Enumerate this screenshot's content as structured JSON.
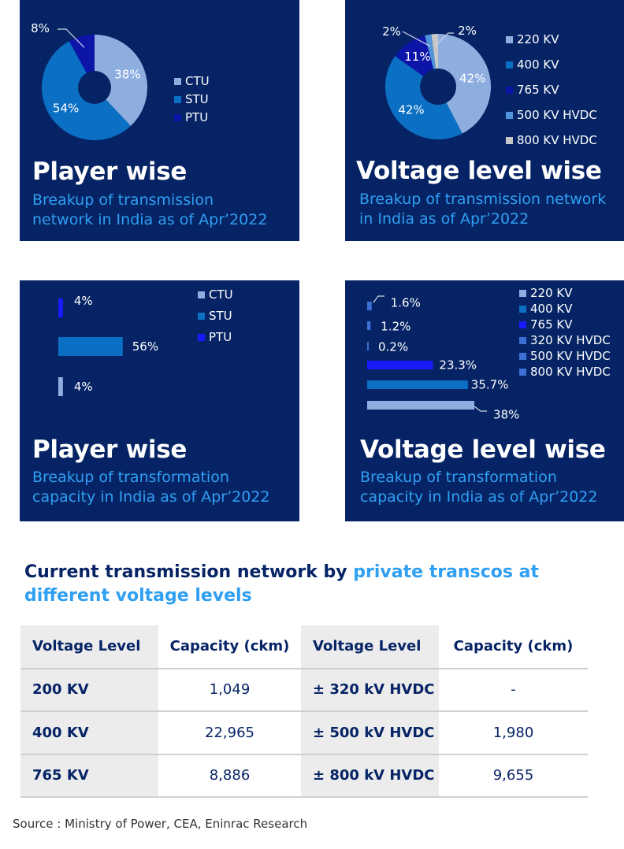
{
  "panels": [
    {
      "id": "p1",
      "title": "Player wise",
      "subtitle_lines": [
        "Breakup of transmission",
        "network in India as of Apr’2022"
      ],
      "legend": [
        {
          "label": "CTU",
          "color": "#8faee0"
        },
        {
          "label": "STU",
          "color": "#0b6fc4"
        },
        {
          "label": "PTU",
          "color": "#0d14a8"
        }
      ]
    },
    {
      "id": "p2",
      "title": "Voltage level wise",
      "subtitle_lines": [
        "Breakup of transmission network",
        "in India as of Apr’2022"
      ],
      "legend": [
        {
          "label": "220 KV",
          "color": "#8faee0"
        },
        {
          "label": "400 KV",
          "color": "#0b6fc4"
        },
        {
          "label": "765 KV",
          "color": "#0d14a8"
        },
        {
          "label": "500 KV HVDC",
          "color": "#4f93db"
        },
        {
          "label": "800 KV HVDC",
          "color": "#c8c8c8"
        }
      ]
    },
    {
      "id": "p3",
      "title": "Player wise",
      "subtitle_lines": [
        "Breakup of transformation",
        "capacity in India as of Apr’2022"
      ],
      "legend": [
        {
          "label": "CTU",
          "color": "#8faee0"
        },
        {
          "label": "STU",
          "color": "#0b6fc4"
        },
        {
          "label": "PTU",
          "color": "#1a1aff"
        }
      ]
    },
    {
      "id": "p4",
      "title": "Voltage level wise",
      "subtitle_lines": [
        "Breakup of transformation",
        "capacity in India as of Apr’2022"
      ],
      "legend": [
        {
          "label": "220 KV",
          "color": "#8faee0"
        },
        {
          "label": "400 KV",
          "color": "#0b6fc4"
        },
        {
          "label": "765 KV",
          "color": "#1a1aff"
        },
        {
          "label": "320 KV HVDC",
          "color": "#3d6fd6"
        },
        {
          "label": "500 KV HVDC",
          "color": "#3d6fd6"
        },
        {
          "label": "800 KV HVDC",
          "color": "#3d6fd6"
        }
      ]
    }
  ],
  "chart_data": [
    {
      "type": "pie",
      "donut": true,
      "title": "Player wise",
      "subtitle": "Breakup of transmission network in India as of Apr’2022",
      "slices": [
        {
          "label": "CTU",
          "value": 38,
          "display": "38%",
          "color": "#8faee0"
        },
        {
          "label": "STU",
          "value": 54,
          "display": "54%",
          "color": "#0b6fc4"
        },
        {
          "label": "PTU",
          "value": 8,
          "display": "8%",
          "color": "#0d14a8"
        }
      ],
      "legend": "right"
    },
    {
      "type": "pie",
      "donut": true,
      "title": "Voltage level wise",
      "subtitle": "Breakup of transmission network in India as of Apr’2022",
      "slices": [
        {
          "label": "220 KV",
          "value": 42,
          "display": "42%",
          "color": "#8faee0"
        },
        {
          "label": "400 KV",
          "value": 42,
          "display": "42%",
          "color": "#0b6fc4"
        },
        {
          "label": "765 KV",
          "value": 11,
          "display": "11%",
          "color": "#0d14a8"
        },
        {
          "label": "500 KV HVDC",
          "value": 2,
          "display": "2%",
          "color": "#4f93db"
        },
        {
          "label": "800 KV HVDC",
          "value": 2,
          "display": "2%",
          "color": "#c8c8c8"
        }
      ],
      "legend": "right"
    },
    {
      "type": "bar",
      "orientation": "horizontal",
      "title": "Player wise",
      "subtitle": "Breakup of transformation capacity in India as of Apr’2022",
      "categories": [
        "PTU",
        "STU",
        "CTU"
      ],
      "values": [
        4,
        56,
        4
      ],
      "labels": [
        "4%",
        "56%",
        "4%"
      ],
      "colors": [
        "#1a1aff",
        "#0b6fc4",
        "#8faee0"
      ],
      "legend": "top-right"
    },
    {
      "type": "bar",
      "orientation": "horizontal",
      "title": "Voltage level wise",
      "subtitle": "Breakup of transformation capacity in India as of Apr’2022",
      "categories": [
        "800 KV HVDC",
        "500 KV HVDC",
        "320 KV HVDC",
        "765 KV",
        "400 KV",
        "220 KV"
      ],
      "values": [
        1.6,
        1.2,
        0.2,
        23.3,
        35.7,
        38
      ],
      "labels": [
        "1.6%",
        "1.2%",
        "0.2%",
        "23.3%",
        "35.7%",
        "38%"
      ],
      "colors": [
        "#3d6fd6",
        "#3d6fd6",
        "#3d6fd6",
        "#1a1aff",
        "#0b6fc4",
        "#8faee0"
      ],
      "legend": "top-right"
    },
    {
      "type": "table",
      "heading_prefix": "Current transmission network by ",
      "heading_highlight": "private transcos at different voltage levels",
      "headers": [
        "Voltage Level",
        "Capacity (ckm)",
        "Voltage Level",
        "Capacity (ckm)"
      ],
      "rows": [
        [
          "200 KV",
          "1,049",
          "± 320 kV HVDC",
          "-"
        ],
        [
          "400 KV",
          "22,965",
          "± 500 kV HVDC",
          "1,980"
        ],
        [
          "765 KV",
          "8,886",
          "± 800 kV HVDC",
          "9,655"
        ]
      ]
    }
  ],
  "source": "Source : Ministry of Power, CEA, Eninrac Research"
}
